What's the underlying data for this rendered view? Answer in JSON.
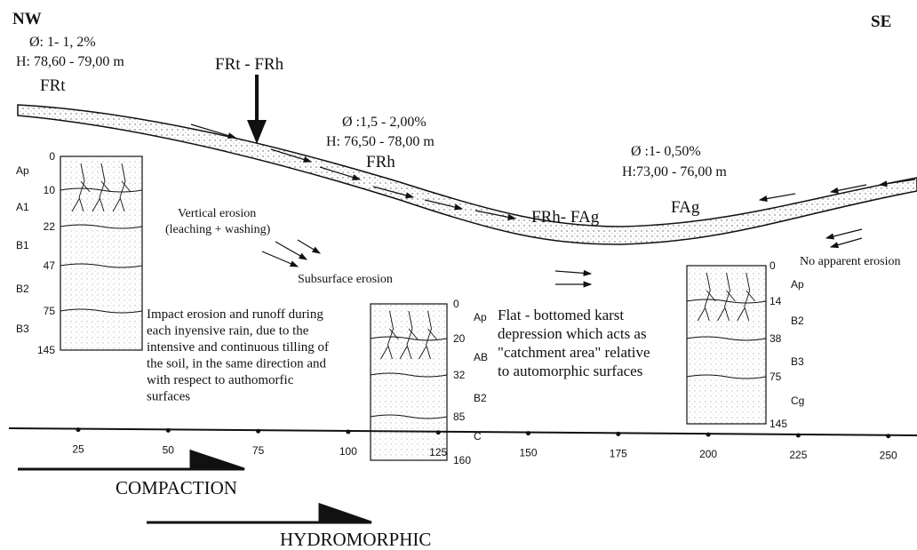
{
  "header": {
    "left": "NW",
    "right": "SE"
  },
  "zones": [
    {
      "slope": "Ø: 1- 1, 2%",
      "height": "H: 78,60 - 79,00 m",
      "soil": "FRt"
    },
    {
      "slope": "Ø :1,5 - 2,00%",
      "height": "H: 76,50 - 78,00 m",
      "soil": "FRh"
    },
    {
      "slope": "Ø :1- 0,50%",
      "height": "H:73,00 - 76,00 m",
      "soil": "FAg"
    }
  ],
  "transitions": [
    "FRt - FRh",
    "FRh- FAg"
  ],
  "erosion": {
    "vertical": [
      "Vertical erosion",
      "(leaching + washing)"
    ],
    "subsurface": "Subsurface erosion",
    "none": "No apparent erosion"
  },
  "notes": {
    "impact": [
      "Impact erosion and runoff during",
      "each inyensive rain, due to the",
      "intensive and continuous tilling of",
      "the soil, in the same direction and",
      "with respect to authomorfic",
      "surfaces"
    ],
    "karst": [
      "Flat - bottomed karst",
      "depression which acts as",
      "\"catchment area\" relative",
      "to automorphic surfaces"
    ]
  },
  "profiles": [
    {
      "horizons": [
        "Ap",
        "A1",
        "B1",
        "B2",
        "B3"
      ],
      "depths": [
        "0",
        "10",
        "22",
        "47",
        "75",
        "145"
      ]
    },
    {
      "horizons": [
        "Ap",
        "AB",
        "B2",
        "C"
      ],
      "depths": [
        "0",
        "20",
        "32",
        "85",
        "160"
      ]
    },
    {
      "horizons": [
        "Ap",
        "B2",
        "B3",
        "Cg"
      ],
      "depths": [
        "0",
        "14",
        "38",
        "75",
        "145"
      ]
    }
  ],
  "axis": {
    "ticks": [
      "25",
      "50",
      "75",
      "100",
      "125",
      "150",
      "175",
      "200",
      "225",
      "250"
    ]
  },
  "trends": [
    "COMPACTION",
    "HYDROMORPHIC"
  ]
}
